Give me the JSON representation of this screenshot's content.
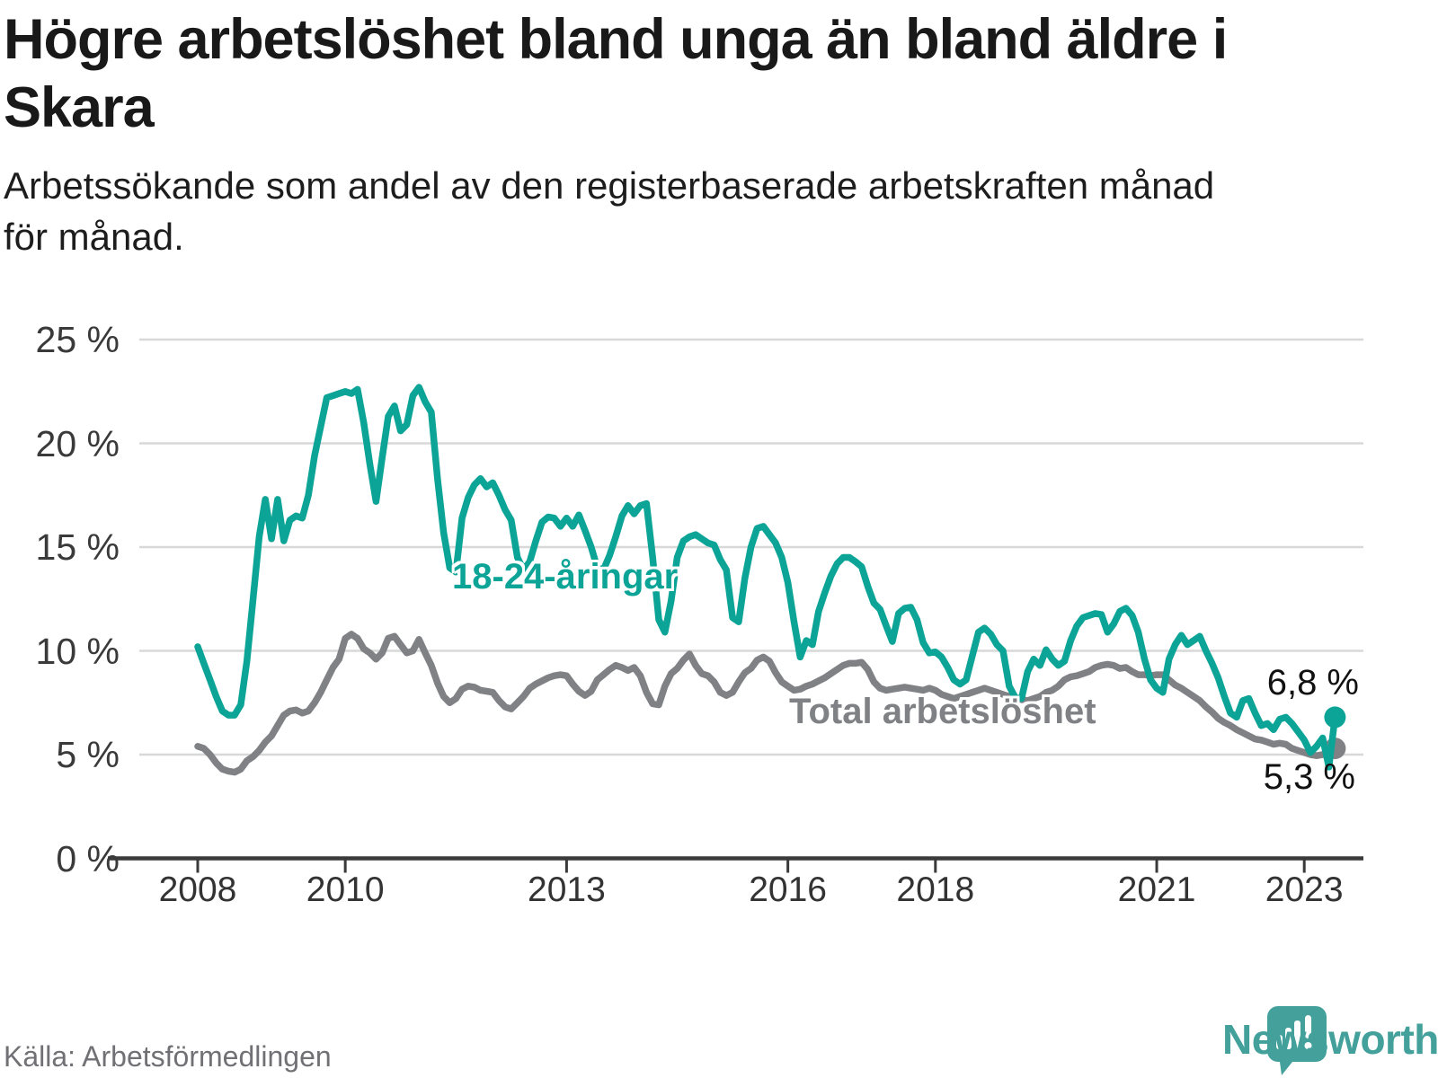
{
  "header": {
    "title_line1": "Högre arbetslöshet bland unga än bland äldre i",
    "title_line2": "Skara",
    "subtitle_line1": "Arbetssökande som andel av den registerbaserade arbetskraften månad",
    "subtitle_line2": "för månad."
  },
  "footer": {
    "source": "Källa: Arbetsförmedlingen",
    "brand": "Newsworthy"
  },
  "colors": {
    "youth": "#0ca496",
    "total": "#7f8185",
    "grid": "#d8d8d8",
    "axis": "#3a3a3a",
    "title": "#191919",
    "tick_text": "#333333",
    "source_text": "#717175",
    "logo": "#43a09b",
    "end_label": "#111111",
    "background": "#ffffff"
  },
  "chart_data": {
    "type": "line",
    "title": "Högre arbetslöshet bland unga än bland äldre i Skara",
    "subtitle": "Arbetssökande som andel av den registerbaserade arbetskraften månad för månad.",
    "source": "Källa: Arbetsförmedlingen",
    "x_start": "2008-01",
    "x_interval": "month",
    "ylim": [
      0,
      25
    ],
    "grid": "horizontal",
    "legend_position": "inline-labels",
    "yticks": [
      {
        "value": 0,
        "label": "0 %"
      },
      {
        "value": 5,
        "label": "5 %"
      },
      {
        "value": 10,
        "label": "10 %"
      },
      {
        "value": 15,
        "label": "15 %"
      },
      {
        "value": 20,
        "label": "20 %"
      },
      {
        "value": 25,
        "label": "25 %"
      }
    ],
    "xticks": [
      {
        "year": 2008,
        "label": "2008"
      },
      {
        "year": 2010,
        "label": "2010"
      },
      {
        "year": 2013,
        "label": "2013"
      },
      {
        "year": 2016,
        "label": "2016"
      },
      {
        "year": 2018,
        "label": "2018"
      },
      {
        "year": 2021,
        "label": "2021"
      },
      {
        "year": 2023,
        "label": "2023"
      }
    ],
    "series": [
      {
        "name": "18-24-åringar",
        "color": "#0ca496",
        "end_label": "6,8 %",
        "last_value": 6.8,
        "values": [
          10.2,
          9.4,
          8.6,
          7.8,
          7.1,
          6.9,
          6.9,
          7.4,
          9.5,
          12.5,
          15.5,
          17.3,
          15.4,
          17.3,
          15.3,
          16.3,
          16.5,
          16.4,
          17.5,
          19.4,
          20.8,
          22.2,
          22.3,
          22.4,
          22.5,
          22.4,
          22.6,
          21.0,
          19.0,
          17.2,
          19.3,
          21.3,
          21.8,
          20.6,
          20.9,
          22.3,
          22.7,
          22.0,
          21.5,
          18.3,
          15.7,
          14.0,
          13.8,
          16.4,
          17.4,
          18.0,
          18.3,
          17.9,
          18.1,
          17.5,
          16.8,
          16.3,
          14.5,
          13.9,
          14.3,
          15.3,
          16.2,
          16.45,
          16.4,
          16.0,
          16.4,
          16.0,
          16.55,
          15.8,
          15.0,
          14.0,
          13.9,
          14.6,
          15.5,
          16.5,
          17.0,
          16.6,
          17.0,
          17.1,
          14.5,
          11.5,
          10.9,
          12.4,
          14.5,
          15.3,
          15.5,
          15.6,
          15.4,
          15.2,
          15.1,
          14.4,
          13.9,
          11.6,
          11.4,
          13.5,
          15.0,
          15.9,
          16.0,
          15.6,
          15.2,
          14.5,
          13.3,
          11.4,
          9.7,
          10.5,
          10.3,
          11.9,
          12.8,
          13.6,
          14.2,
          14.5,
          14.5,
          14.3,
          14.05,
          13.1,
          12.3,
          12.0,
          11.2,
          10.45,
          11.8,
          12.05,
          12.1,
          11.5,
          10.4,
          9.9,
          9.95,
          9.7,
          9.2,
          8.6,
          8.4,
          8.6,
          9.75,
          10.9,
          11.1,
          10.8,
          10.3,
          10.0,
          8.3,
          7.75,
          7.7,
          9.0,
          9.6,
          9.3,
          10.05,
          9.6,
          9.3,
          9.5,
          10.5,
          11.2,
          11.6,
          11.7,
          11.8,
          11.75,
          10.9,
          11.3,
          11.9,
          12.05,
          11.7,
          10.9,
          9.6,
          8.6,
          8.2,
          8.0,
          9.6,
          10.3,
          10.75,
          10.3,
          10.5,
          10.7,
          10.0,
          9.4,
          8.7,
          7.8,
          7.0,
          6.8,
          7.6,
          7.7,
          7.0,
          6.4,
          6.5,
          6.2,
          6.7,
          6.8,
          6.5,
          6.1,
          5.7,
          5.1,
          5.4,
          5.8,
          4.4,
          6.8
        ]
      },
      {
        "name": "Total arbetslöshet",
        "color": "#7f8185",
        "end_label": "5,3 %",
        "last_value": 5.3,
        "values": [
          5.4,
          5.3,
          5.0,
          4.6,
          4.3,
          4.2,
          4.15,
          4.3,
          4.7,
          4.9,
          5.2,
          5.6,
          5.9,
          6.4,
          6.9,
          7.1,
          7.15,
          7.0,
          7.1,
          7.5,
          8.0,
          8.6,
          9.2,
          9.6,
          10.6,
          10.8,
          10.6,
          10.1,
          9.9,
          9.6,
          9.9,
          10.6,
          10.7,
          10.3,
          9.9,
          10.0,
          10.55,
          9.9,
          9.3,
          8.45,
          7.8,
          7.5,
          7.7,
          8.15,
          8.3,
          8.25,
          8.1,
          8.05,
          8.0,
          7.6,
          7.3,
          7.2,
          7.5,
          7.8,
          8.2,
          8.4,
          8.55,
          8.7,
          8.8,
          8.85,
          8.8,
          8.4,
          8.05,
          7.85,
          8.05,
          8.6,
          8.85,
          9.1,
          9.3,
          9.2,
          9.05,
          9.2,
          8.8,
          8.0,
          7.45,
          7.4,
          8.3,
          8.9,
          9.15,
          9.55,
          9.85,
          9.3,
          8.9,
          8.8,
          8.5,
          8.0,
          7.85,
          8.0,
          8.5,
          8.95,
          9.15,
          9.55,
          9.7,
          9.5,
          8.95,
          8.5,
          8.3,
          8.1,
          8.15,
          8.3,
          8.4,
          8.55,
          8.7,
          8.9,
          9.1,
          9.3,
          9.4,
          9.4,
          9.45,
          9.1,
          8.5,
          8.2,
          8.1,
          8.15,
          8.2,
          8.25,
          8.2,
          8.15,
          8.1,
          8.2,
          8.1,
          7.9,
          7.8,
          7.7,
          7.8,
          7.9,
          8.0,
          8.1,
          8.2,
          8.1,
          8.0,
          7.9,
          7.8,
          7.7,
          7.65,
          7.6,
          7.7,
          7.8,
          8.0,
          8.1,
          8.3,
          8.6,
          8.75,
          8.8,
          8.9,
          9.0,
          9.2,
          9.3,
          9.35,
          9.3,
          9.15,
          9.2,
          9.0,
          8.85,
          8.85,
          8.8,
          8.85,
          8.85,
          8.6,
          8.35,
          8.2,
          8.0,
          7.8,
          7.6,
          7.3,
          7.05,
          6.75,
          6.55,
          6.4,
          6.2,
          6.05,
          5.9,
          5.75,
          5.7,
          5.6,
          5.5,
          5.55,
          5.5,
          5.3,
          5.2,
          5.1,
          5.0,
          4.95,
          5.0,
          5.15,
          5.3
        ]
      }
    ]
  }
}
